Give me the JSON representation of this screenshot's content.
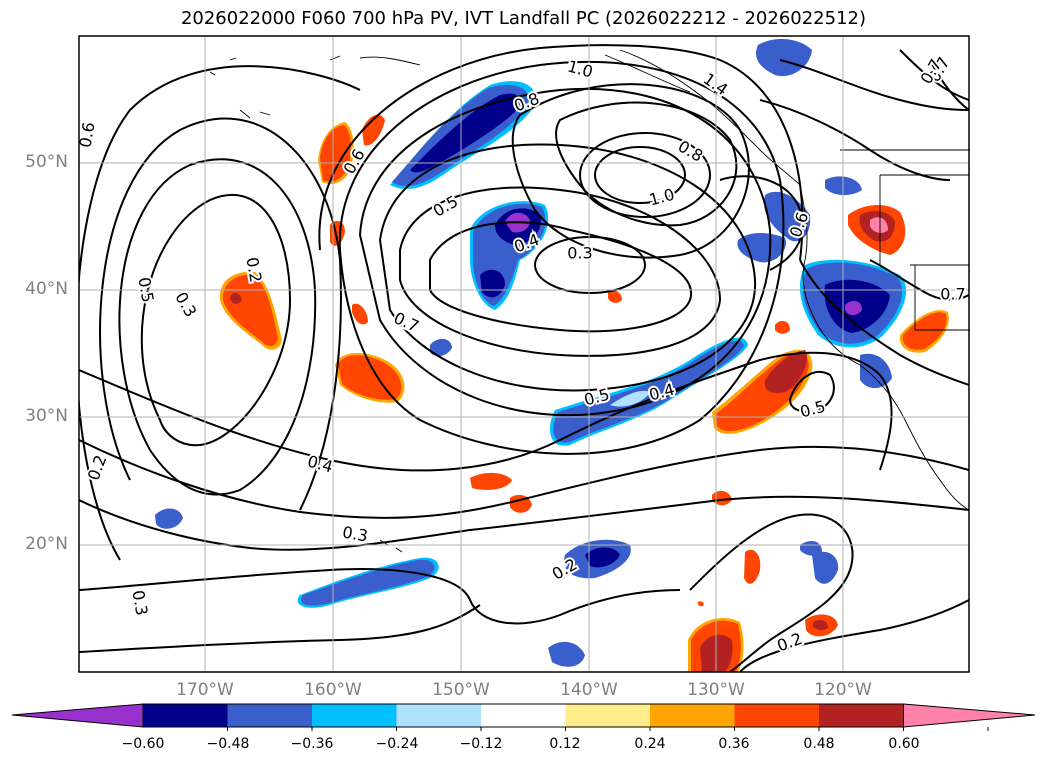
{
  "title": "2026022000 F060 700 hPa PV, IVT Landfall PC (2026022212 - 2026022512)",
  "latitude_labels": [
    "50°N",
    "40°N",
    "30°N",
    "20°N"
  ],
  "longitude_labels": [
    "170°W",
    "160°W",
    "150°W",
    "140°W",
    "130°W",
    "120°W"
  ],
  "colorbar": {
    "ticks": [
      "−0.60",
      "−0.48",
      "−0.36",
      "−0.24",
      "−0.12",
      "0.12",
      "0.24",
      "0.36",
      "0.48",
      "0.60"
    ],
    "colors": [
      "#9932CC",
      "#00008B",
      "#3A5FCD",
      "#00BFFF",
      "#B0E2FF",
      "#FFFFFF",
      "#FFEC8B",
      "#FFA500",
      "#FF4500",
      "#B22222",
      "#FF82AB"
    ]
  },
  "contour_labels": [
    "1.0",
    "1.4",
    "0.7",
    "0.6",
    "0.8",
    "0.6",
    "0.8",
    "0.5",
    "1.0",
    "0.4",
    "0.3",
    "0.6",
    "0.2",
    "0.5",
    "0.3",
    "0.7",
    "0.5",
    "0.4",
    "0.5",
    "0.2",
    "0.4",
    "0.3",
    "0.2",
    "0.3",
    "0.2",
    "0.7",
    "0.7"
  ]
}
